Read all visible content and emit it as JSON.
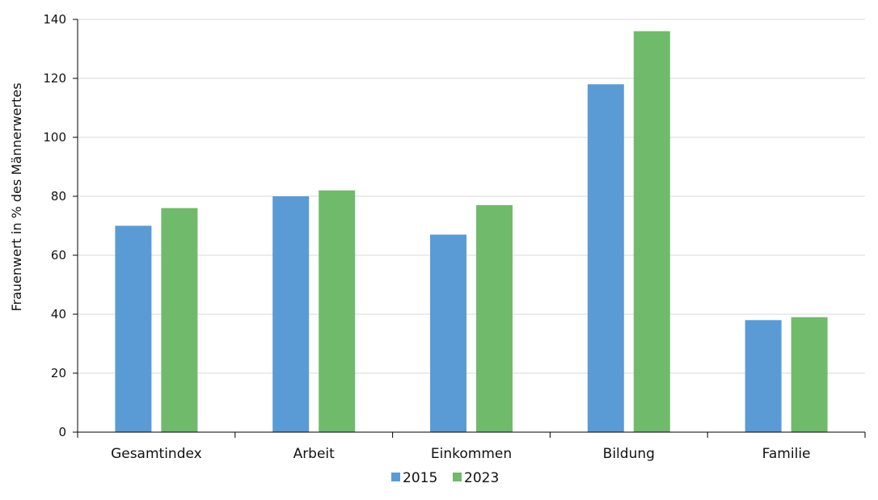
{
  "chart_data": {
    "type": "bar",
    "title": "",
    "xlabel": "",
    "ylabel": "Frauenwert in % des Männerwertes",
    "categories": [
      "Gesamtindex",
      "Arbeit",
      "Einkommen",
      "Bildung",
      "Familie"
    ],
    "series": [
      {
        "name": "2015",
        "color": "#5B9BD5",
        "values": [
          70,
          80,
          67,
          118,
          38
        ]
      },
      {
        "name": "2023",
        "color": "#70BA6C",
        "values": [
          76,
          82,
          77,
          136,
          39
        ]
      }
    ],
    "ylim": [
      0,
      140
    ],
    "yticks": [
      0,
      20,
      40,
      60,
      80,
      100,
      120,
      140
    ],
    "grid": true,
    "legend_position": "bottom-center"
  }
}
